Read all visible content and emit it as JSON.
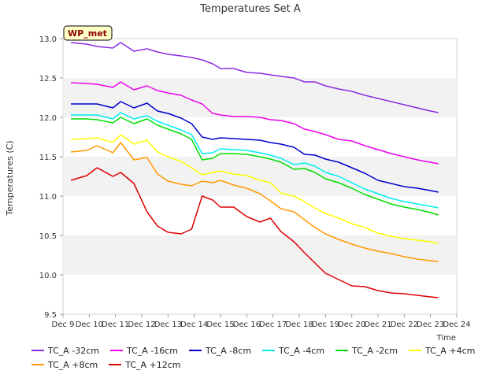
{
  "chart_data": {
    "type": "line",
    "title": "Temperatures Set A",
    "xlabel": "Time",
    "ylabel": "Temperatures (C)",
    "badge": "WP_met",
    "x_ticks": [
      "Dec 9",
      "Dec 10",
      "Dec 11",
      "Dec 12",
      "Dec 13",
      "Dec 14",
      "Dec 15",
      "Dec 16",
      "Dec 17",
      "Dec 18",
      "Dec 19",
      "Dec 20",
      "Dec 21",
      "Dec 22",
      "Dec 23",
      "Dec 24"
    ],
    "xlim": [
      9,
      24
    ],
    "ylim": [
      9.5,
      13.0
    ],
    "y_ticks": [
      "9.5",
      "10.0",
      "10.5",
      "11.0",
      "11.5",
      "12.0",
      "12.5",
      "13.0"
    ],
    "y_tick_values": [
      9.5,
      10.0,
      10.5,
      11.0,
      11.5,
      12.0,
      12.5,
      13.0
    ],
    "banded_background": true,
    "x": [
      9.3,
      9.9,
      10.3,
      10.9,
      11.2,
      11.7,
      12.2,
      12.6,
      13.0,
      13.5,
      13.9,
      14.3,
      14.7,
      15.0,
      15.5,
      16.0,
      16.5,
      16.9,
      17.3,
      17.8,
      18.2,
      18.6,
      19.0,
      19.5,
      20.0,
      20.5,
      21.0,
      21.5,
      22.0,
      22.5,
      23.0,
      23.3
    ],
    "series": [
      {
        "name": "TC_A -32cm",
        "color": "#8b2be2",
        "values": [
          12.95,
          12.93,
          12.9,
          12.88,
          12.95,
          12.84,
          12.87,
          12.83,
          12.8,
          12.78,
          12.76,
          12.73,
          12.68,
          12.62,
          12.62,
          12.57,
          12.56,
          12.54,
          12.52,
          12.5,
          12.45,
          12.45,
          12.4,
          12.36,
          12.33,
          12.28,
          12.24,
          12.2,
          12.16,
          12.12,
          12.08,
          12.06
        ]
      },
      {
        "name": "TC_A -16cm",
        "color": "#ee00ee",
        "values": [
          12.44,
          12.43,
          12.42,
          12.38,
          12.45,
          12.35,
          12.4,
          12.34,
          12.31,
          12.28,
          12.22,
          12.17,
          12.05,
          12.03,
          12.01,
          12.01,
          12.0,
          11.97,
          11.96,
          11.92,
          11.85,
          11.82,
          11.78,
          11.72,
          11.7,
          11.64,
          11.59,
          11.54,
          11.5,
          11.46,
          11.43,
          11.41
        ]
      },
      {
        "name": "TC_A -8cm",
        "color": "#0000cc",
        "values": [
          12.17,
          12.17,
          12.17,
          12.12,
          12.2,
          12.12,
          12.18,
          12.08,
          12.05,
          11.99,
          11.92,
          11.75,
          11.72,
          11.74,
          11.73,
          11.72,
          11.71,
          11.68,
          11.66,
          11.62,
          11.53,
          11.52,
          11.47,
          11.43,
          11.36,
          11.29,
          11.2,
          11.16,
          11.12,
          11.1,
          11.07,
          11.05
        ]
      },
      {
        "name": "TC_A -4cm",
        "color": "#00eeee",
        "values": [
          12.03,
          12.03,
          12.03,
          11.98,
          12.06,
          11.98,
          12.02,
          11.95,
          11.9,
          11.84,
          11.78,
          11.54,
          11.55,
          11.6,
          11.59,
          11.58,
          11.55,
          11.52,
          11.48,
          11.4,
          11.42,
          11.38,
          11.3,
          11.25,
          11.17,
          11.09,
          11.03,
          10.97,
          10.93,
          10.9,
          10.87,
          10.85
        ]
      },
      {
        "name": "TC_A -2cm",
        "color": "#00dd00",
        "values": [
          11.98,
          11.98,
          11.97,
          11.93,
          12.0,
          11.92,
          11.98,
          11.9,
          11.85,
          11.79,
          11.72,
          11.46,
          11.48,
          11.54,
          11.54,
          11.53,
          11.5,
          11.47,
          11.43,
          11.34,
          11.35,
          11.3,
          11.22,
          11.17,
          11.1,
          11.02,
          10.96,
          10.9,
          10.86,
          10.83,
          10.79,
          10.76
        ]
      },
      {
        "name": "TC_A +4cm",
        "color": "#ffff00",
        "values": [
          11.72,
          11.73,
          11.74,
          11.68,
          11.78,
          11.66,
          11.71,
          11.56,
          11.5,
          11.44,
          11.36,
          11.27,
          11.3,
          11.32,
          11.28,
          11.26,
          11.2,
          11.17,
          11.04,
          11.0,
          10.93,
          10.85,
          10.78,
          10.72,
          10.65,
          10.6,
          10.53,
          10.49,
          10.46,
          10.44,
          10.42,
          10.4
        ]
      },
      {
        "name": "TC_A +8cm",
        "color": "#ff9900",
        "values": [
          11.56,
          11.58,
          11.64,
          11.55,
          11.68,
          11.46,
          11.49,
          11.28,
          11.19,
          11.15,
          11.13,
          11.19,
          11.17,
          11.2,
          11.14,
          11.1,
          11.03,
          10.94,
          10.84,
          10.8,
          10.7,
          10.6,
          10.52,
          10.45,
          10.39,
          10.34,
          10.3,
          10.27,
          10.23,
          10.2,
          10.18,
          10.17
        ]
      },
      {
        "name": "TC_A +12cm",
        "color": "#dd0000",
        "values": [
          11.2,
          11.26,
          11.36,
          11.25,
          11.3,
          11.16,
          10.8,
          10.62,
          10.54,
          10.52,
          10.58,
          11.0,
          10.95,
          10.86,
          10.86,
          10.74,
          10.67,
          10.72,
          10.55,
          10.42,
          10.28,
          10.15,
          10.02,
          9.94,
          9.86,
          9.85,
          9.8,
          9.77,
          9.76,
          9.74,
          9.72,
          9.71
        ]
      }
    ]
  }
}
